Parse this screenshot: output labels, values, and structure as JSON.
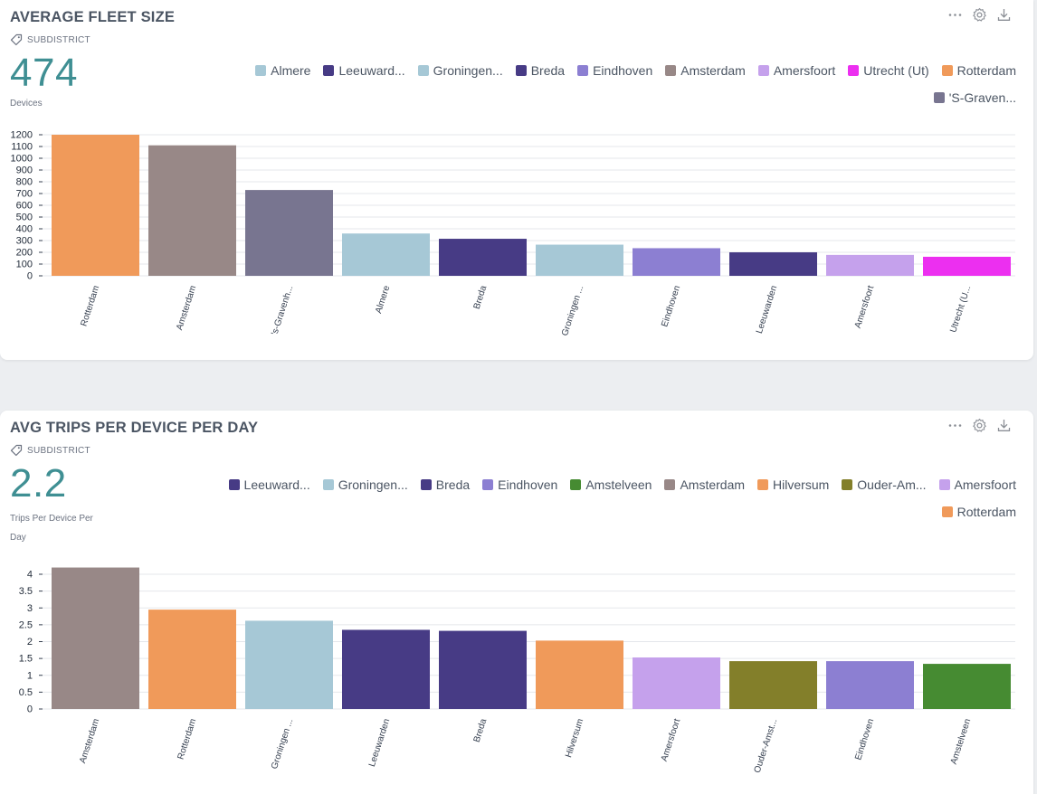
{
  "colors": {
    "Almere": "#a6c8d6",
    "Leeuwarden": "#473b85",
    "Groningen": "#a6c8d6",
    "Breda": "#473b85",
    "Eindhoven": "#8c7fd2",
    "Amsterdam": "#988887",
    "Amersfoort": "#c5a1ec",
    "Utrecht": "#ec2ff0",
    "Rotterdam": "#f09a5a",
    "SGravenhage": "#787590",
    "Amstelveen": "#468b32",
    "Hilversum": "#f09a5a",
    "OuderAmstel": "#837f2a",
    "bignum": "#3f8f93"
  },
  "panels": [
    {
      "title": "AVERAGE FLEET SIZE",
      "tag": "SUBDISTRICT",
      "big_number": "474",
      "unit_lines": [
        "Devices"
      ],
      "legend": [
        {
          "label": "Almere",
          "color": "#a6c8d6"
        },
        {
          "label": "Leeuward...",
          "color": "#473b85"
        },
        {
          "label": "Groningen...",
          "color": "#a6c8d6"
        },
        {
          "label": "Breda",
          "color": "#473b85"
        },
        {
          "label": "Eindhoven",
          "color": "#8c7fd2"
        },
        {
          "label": "Amsterdam",
          "color": "#988887"
        },
        {
          "label": "Amersfoort",
          "color": "#c5a1ec"
        },
        {
          "label": "Utrecht (Ut)",
          "color": "#ec2ff0"
        },
        {
          "label": "Rotterdam",
          "color": "#f09a5a"
        },
        {
          "label": "'S-Graven...",
          "color": "#787590"
        }
      ],
      "icons": [
        "more-icon",
        "gear-icon",
        "download-icon"
      ]
    },
    {
      "title": "AVG TRIPS PER DEVICE PER DAY",
      "tag": "SUBDISTRICT",
      "big_number": "2.2",
      "unit_lines": [
        "Trips Per Device Per",
        "Day"
      ],
      "legend": [
        {
          "label": "Leeuward...",
          "color": "#473b85"
        },
        {
          "label": "Groningen...",
          "color": "#a6c8d6"
        },
        {
          "label": "Breda",
          "color": "#473b85"
        },
        {
          "label": "Eindhoven",
          "color": "#8c7fd2"
        },
        {
          "label": "Amstelveen",
          "color": "#468b32"
        },
        {
          "label": "Amsterdam",
          "color": "#988887"
        },
        {
          "label": "Hilversum",
          "color": "#f09a5a"
        },
        {
          "label": "Ouder-Am...",
          "color": "#837f2a"
        },
        {
          "label": "Amersfoort",
          "color": "#c5a1ec"
        },
        {
          "label": "Rotterdam",
          "color": "#f09a5a"
        }
      ],
      "icons": [
        "more-icon",
        "gear-icon",
        "download-icon"
      ]
    }
  ],
  "chart_data": [
    {
      "type": "bar",
      "title": "AVERAGE FLEET SIZE",
      "categories": [
        "Rotterdam",
        "Amsterdam",
        "'s-Gravenh...",
        "Almere",
        "Breda",
        "Groningen ...",
        "Eindhoven",
        "Leeuwarden",
        "Amersfoort",
        "Utrecht (U..."
      ],
      "values": [
        1200,
        1110,
        730,
        360,
        315,
        265,
        235,
        200,
        178,
        162
      ],
      "bar_colors": [
        "#f09a5a",
        "#988887",
        "#787590",
        "#a6c8d6",
        "#473b85",
        "#a6c8d6",
        "#8c7fd2",
        "#473b85",
        "#c5a1ec",
        "#ec2ff0"
      ],
      "yticks": [
        0,
        100,
        200,
        300,
        400,
        500,
        600,
        700,
        800,
        900,
        1000,
        1100,
        1200
      ],
      "ylim": [
        0,
        1200
      ],
      "grid": true
    },
    {
      "type": "bar",
      "title": "AVG TRIPS PER DEVICE PER DAY",
      "categories": [
        "Amsterdam",
        "Rotterdam",
        "Groningen ...",
        "Leeuwarden",
        "Breda",
        "Hilversum",
        "Amersfoort",
        "Ouder-Amst...",
        "Eindhoven",
        "Amstelveen"
      ],
      "values": [
        4.2,
        2.95,
        2.62,
        2.35,
        2.32,
        2.03,
        1.53,
        1.42,
        1.42,
        1.34
      ],
      "bar_colors": [
        "#988887",
        "#f09a5a",
        "#a6c8d6",
        "#473b85",
        "#473b85",
        "#f09a5a",
        "#c5a1ec",
        "#837f2a",
        "#8c7fd2",
        "#468b32"
      ],
      "yticks": [
        0,
        0.5,
        1,
        1.5,
        2,
        2.5,
        3,
        3.5,
        4
      ],
      "ylim": [
        0,
        4
      ],
      "grid": true
    }
  ]
}
